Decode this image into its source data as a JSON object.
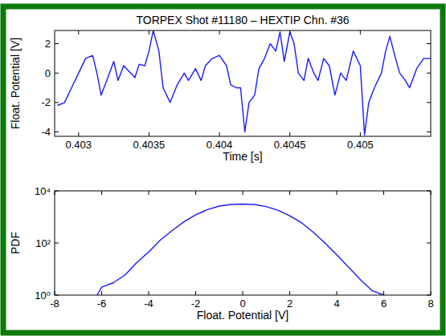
{
  "chart_data": [
    {
      "type": "line",
      "title": "TORPEX Shot #11180 – HEXTIP Chn. #36",
      "x_label": "Time [s]",
      "y_label": "Float. Potential [V]",
      "x": [
        0.40285,
        0.4029,
        0.40295,
        0.403,
        0.40305,
        0.4031,
        0.40313,
        0.40316,
        0.4032,
        0.40325,
        0.40328,
        0.40332,
        0.40335,
        0.4034,
        0.40343,
        0.40347,
        0.4035,
        0.40353,
        0.40357,
        0.4036,
        0.40365,
        0.4037,
        0.40375,
        0.40378,
        0.40383,
        0.40387,
        0.4039,
        0.40395,
        0.404,
        0.40405,
        0.40408,
        0.40412,
        0.40415,
        0.40418,
        0.40421,
        0.40425,
        0.40428,
        0.40432,
        0.40436,
        0.4044,
        0.40443,
        0.40446,
        0.4045,
        0.40453,
        0.40456,
        0.4046,
        0.40463,
        0.40467,
        0.4047,
        0.40474,
        0.40478,
        0.40482,
        0.40486,
        0.4049,
        0.40495,
        0.405,
        0.40503,
        0.40506,
        0.4051,
        0.40515,
        0.40518,
        0.40521,
        0.40525,
        0.40528,
        0.40532,
        0.40535,
        0.4054,
        0.40545,
        0.4055
      ],
      "series": [
        {
          "name": "HEXTIP Chn. #36",
          "color": "#1a1aff",
          "values": [
            -2.2,
            -2.0,
            -1.0,
            0.0,
            1.0,
            1.2,
            0.0,
            -1.5,
            -0.5,
            0.8,
            -0.5,
            0.5,
            0.2,
            -0.3,
            0.6,
            0.5,
            1.5,
            2.9,
            1.5,
            -1.0,
            -2.0,
            -0.8,
            0.0,
            -0.5,
            0.3,
            -0.5,
            0.5,
            1.0,
            1.2,
            0.5,
            -0.8,
            -1.0,
            -1.0,
            -4.0,
            -2.0,
            -1.5,
            0.3,
            1.0,
            2.0,
            1.5,
            2.8,
            0.8,
            2.8,
            2.0,
            0.0,
            -0.5,
            1.0,
            0.0,
            -0.5,
            1.0,
            0.5,
            -1.5,
            0.0,
            -0.5,
            1.5,
            0.5,
            -4.2,
            -2.0,
            -1.0,
            0.0,
            1.5,
            2.5,
            1.0,
            0.0,
            -0.5,
            -1.0,
            0.3,
            1.0,
            1.0
          ]
        }
      ],
      "xlim": [
        0.40283,
        0.4055
      ],
      "ylim": [
        -4.3,
        2.9
      ],
      "xticks": [
        0.403,
        0.4035,
        0.404,
        0.4045,
        0.405
      ],
      "yticks": [
        -4,
        -2,
        0,
        2
      ],
      "grid": false
    },
    {
      "type": "line",
      "x_label": "Float. Potential [V]",
      "y_label": "PDF",
      "x": [
        -6.2,
        -6.0,
        -5.5,
        -5.0,
        -4.5,
        -4.0,
        -3.5,
        -3.0,
        -2.5,
        -2.0,
        -1.5,
        -1.0,
        -0.5,
        0.0,
        0.5,
        1.0,
        1.5,
        2.0,
        2.5,
        3.0,
        3.5,
        4.0,
        4.5,
        5.0,
        5.5,
        6.0
      ],
      "series": [
        {
          "name": "PDF",
          "color": "#1a1aff",
          "values": [
            1,
            2,
            3,
            6,
            18,
            45,
            130,
            300,
            650,
            1200,
            1900,
            2600,
            3000,
            3100,
            3000,
            2500,
            1800,
            1100,
            600,
            260,
            100,
            35,
            12,
            4,
            1.5,
            1
          ]
        }
      ],
      "xlim": [
        -8,
        8
      ],
      "ylim": [
        1,
        10000
      ],
      "log": "y",
      "xticks": [
        -8,
        -6,
        -4,
        -2,
        0,
        2,
        4,
        6,
        8
      ],
      "yticks": [
        {
          "value": 1,
          "label": "10⁰"
        },
        {
          "value": 100,
          "label": "10²"
        },
        {
          "value": 10000,
          "label": "10⁴"
        }
      ],
      "grid": false
    }
  ]
}
